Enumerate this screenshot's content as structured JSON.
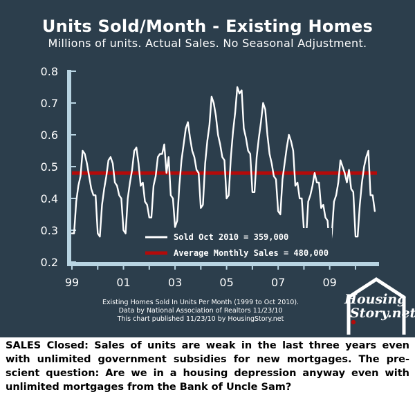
{
  "chart_data": {
    "type": "line",
    "title": "Units Sold/Month - Existing Homes",
    "subtitle": "Millions of units. Actual Sales. No Seasonal Adjustment.",
    "xlabel": "",
    "ylabel": "",
    "xlim": [
      1999.0,
      2010.833
    ],
    "ylim": [
      0.2,
      0.8
    ],
    "x_tick_labels": [
      "99",
      "01",
      "03",
      "05",
      "07",
      "09"
    ],
    "x_tick_values": [
      1999,
      2001,
      2003,
      2005,
      2007,
      2009
    ],
    "y_tick_labels": [
      "0.2",
      "0.3",
      "0.4",
      "0.5",
      "0.6",
      "0.7",
      "0.8"
    ],
    "y_tick_values": [
      0.2,
      0.3,
      0.4,
      0.5,
      0.6,
      0.7,
      0.8
    ],
    "grid": false,
    "legend_position": "bottom-center",
    "series": [
      {
        "name": "Sold Oct 2010 = 359,000",
        "color": "#ffffff",
        "x_start": 1999.0,
        "step_months": 1,
        "values": [
          0.29,
          0.29,
          0.39,
          0.44,
          0.47,
          0.55,
          0.54,
          0.51,
          0.47,
          0.43,
          0.41,
          0.41,
          0.29,
          0.28,
          0.38,
          0.43,
          0.47,
          0.52,
          0.53,
          0.51,
          0.45,
          0.44,
          0.41,
          0.4,
          0.3,
          0.29,
          0.4,
          0.45,
          0.49,
          0.55,
          0.56,
          0.51,
          0.44,
          0.45,
          0.39,
          0.38,
          0.34,
          0.34,
          0.44,
          0.47,
          0.53,
          0.54,
          0.54,
          0.57,
          0.48,
          0.53,
          0.41,
          0.4,
          0.31,
          0.33,
          0.44,
          0.52,
          0.57,
          0.62,
          0.64,
          0.59,
          0.55,
          0.53,
          0.49,
          0.48,
          0.37,
          0.38,
          0.51,
          0.58,
          0.63,
          0.72,
          0.7,
          0.66,
          0.6,
          0.57,
          0.53,
          0.52,
          0.4,
          0.41,
          0.53,
          0.61,
          0.67,
          0.75,
          0.73,
          0.74,
          0.62,
          0.59,
          0.55,
          0.54,
          0.42,
          0.42,
          0.53,
          0.59,
          0.64,
          0.7,
          0.68,
          0.6,
          0.54,
          0.51,
          0.47,
          0.46,
          0.36,
          0.35,
          0.46,
          0.51,
          0.56,
          0.6,
          0.58,
          0.55,
          0.44,
          0.45,
          0.4,
          0.4,
          0.3,
          0.27,
          0.39,
          0.41,
          0.44,
          0.48,
          0.45,
          0.45,
          0.37,
          0.38,
          0.34,
          0.33,
          0.24,
          0.29,
          0.39,
          0.41,
          0.45,
          0.52,
          0.5,
          0.48,
          0.45,
          0.49,
          0.43,
          0.42,
          0.28,
          0.28,
          0.38,
          0.45,
          0.5,
          0.53,
          0.55,
          0.41,
          0.41,
          0.36
        ]
      },
      {
        "name": "Average Monthly Sales = 480,000",
        "color": "#b40a0a",
        "x": [
          1999.0,
          2010.833
        ],
        "values": [
          0.48,
          0.48
        ]
      }
    ],
    "annotations": [
      "Existing Homes Sold In Units Per Month (1999 to Oct 2010).",
      "Data by National Association of Realtors 11/23/10",
      "This chart published 11/23/10 by HousingStory.net"
    ]
  },
  "logo": {
    "line1": "Housing",
    "line2": "Story.net",
    "color": "#ffffff",
    "accent": "#b40a0a"
  },
  "commentary": "SALES Closed: Sales of units are weak in the last three years even with unlimited government subsidies for new mortgages. The pre-scient question: Are we in a housing depression anyway even with unlimited mortgages from the Bank of Uncle Sam?",
  "colors": {
    "panel_background": "#2c3e4c",
    "axis": "#b8d4e2",
    "sales_line": "#ffffff",
    "average_line": "#b40a0a"
  }
}
